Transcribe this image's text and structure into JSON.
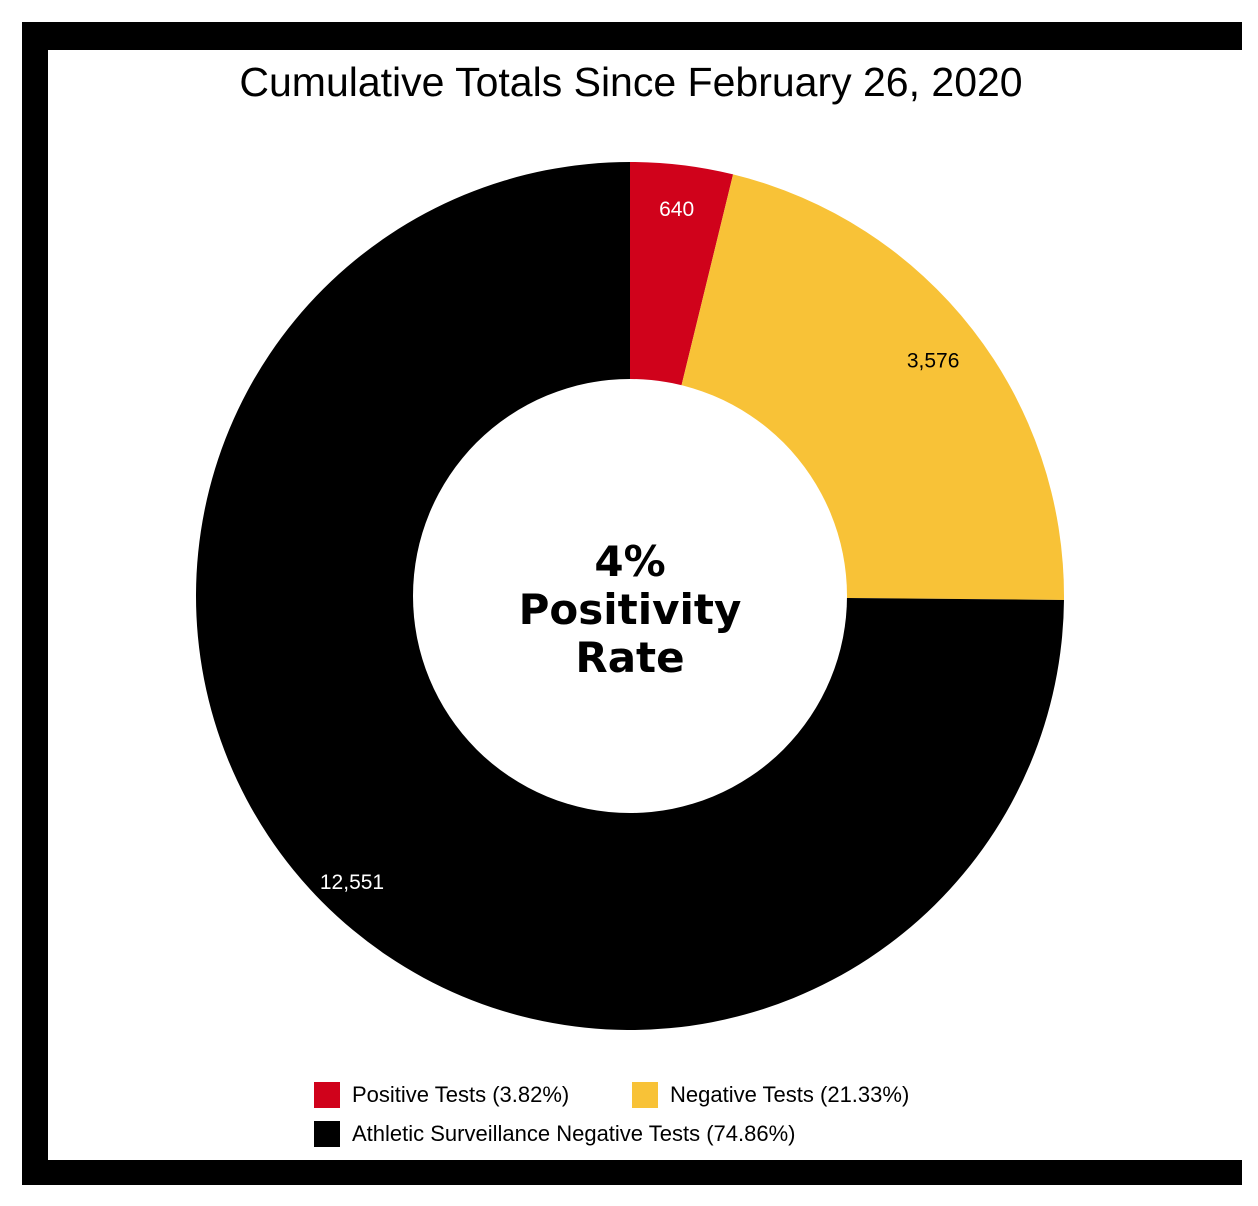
{
  "chart_data": {
    "type": "pie",
    "variant": "donut",
    "title": "Cumulative Totals Since February 26, 2020",
    "center_label": {
      "lines": [
        "4%",
        "Positivity",
        "Rate"
      ]
    },
    "slices": [
      {
        "name": "Positive Tests (3.82%)",
        "value": 640,
        "label": "640",
        "percent": 3.82,
        "color": "#d0021b",
        "label_color": "#ffffff"
      },
      {
        "name": "Negative Tests (21.33%)",
        "value": 3576,
        "label": "3,576",
        "percent": 21.33,
        "color": "#f8c237",
        "label_color": "#000000"
      },
      {
        "name": "Athletic Surveillance Negative Tests (74.86%)",
        "value": 12551,
        "label": "12,551",
        "percent": 74.86,
        "color": "#000000",
        "label_color": "#ffffff"
      }
    ],
    "start_angle": "12 o'clock",
    "direction": "clockwise",
    "legend_position": "bottom"
  }
}
